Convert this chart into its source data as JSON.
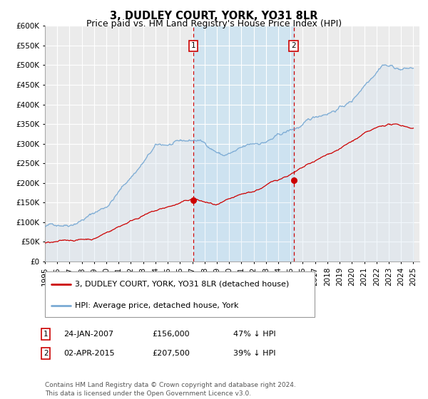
{
  "title": "3, DUDLEY COURT, YORK, YO31 8LR",
  "subtitle": "Price paid vs. HM Land Registry's House Price Index (HPI)",
  "ylim": [
    0,
    600000
  ],
  "yticks": [
    0,
    50000,
    100000,
    150000,
    200000,
    250000,
    300000,
    350000,
    400000,
    450000,
    500000,
    550000,
    600000
  ],
  "ytick_labels": [
    "£0",
    "£50K",
    "£100K",
    "£150K",
    "£200K",
    "£250K",
    "£300K",
    "£350K",
    "£400K",
    "£450K",
    "£500K",
    "£550K",
    "£600K"
  ],
  "background_color": "#ffffff",
  "plot_bg_color": "#ebebeb",
  "grid_color": "#ffffff",
  "hpi_color": "#7aaad4",
  "hpi_fill_color": "#c8dff0",
  "price_color": "#cc0000",
  "shade_color": "#d0e4f0",
  "sale1_date": 2007.07,
  "sale1_price": 156000,
  "sale1_label": "1",
  "sale2_date": 2015.25,
  "sale2_price": 207500,
  "sale2_label": "2",
  "legend_entry1": "3, DUDLEY COURT, YORK, YO31 8LR (detached house)",
  "legend_entry2": "HPI: Average price, detached house, York",
  "table_row1_num": "1",
  "table_row1_date": "24-JAN-2007",
  "table_row1_price": "£156,000",
  "table_row1_hpi": "47% ↓ HPI",
  "table_row2_num": "2",
  "table_row2_date": "02-APR-2015",
  "table_row2_price": "£207,500",
  "table_row2_hpi": "39% ↓ HPI",
  "footer": "Contains HM Land Registry data © Crown copyright and database right 2024.\nThis data is licensed under the Open Government Licence v3.0.",
  "title_fontsize": 10.5,
  "subtitle_fontsize": 9,
  "tick_fontsize": 7.5,
  "legend_fontsize": 8,
  "table_fontsize": 8,
  "footer_fontsize": 6.5
}
